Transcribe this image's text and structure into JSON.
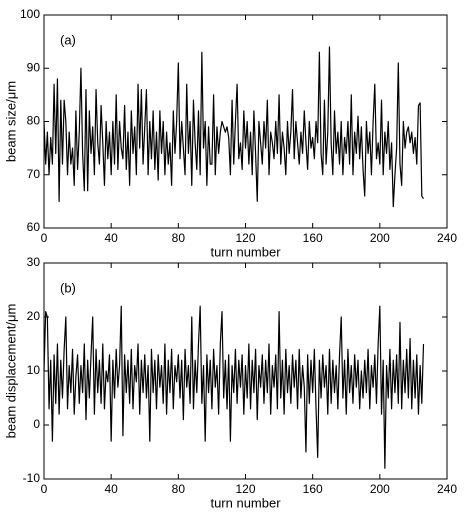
{
  "chart_data": [
    {
      "type": "line",
      "annotation": "(a)",
      "xlabel": "turn number",
      "ylabel": "beam size/μm",
      "color": "#000000",
      "xlim": [
        0,
        240
      ],
      "xticks": [
        0,
        40,
        80,
        120,
        160,
        200,
        240
      ],
      "ylim": [
        60,
        100
      ],
      "yticks": [
        60,
        70,
        80,
        90,
        100
      ],
      "x": [
        0,
        1,
        2,
        3,
        4,
        5,
        6,
        7,
        8,
        9,
        10,
        11,
        12,
        13,
        14,
        15,
        16,
        17,
        18,
        19,
        20,
        21,
        22,
        23,
        24,
        25,
        26,
        27,
        28,
        29,
        30,
        31,
        32,
        33,
        34,
        35,
        36,
        37,
        38,
        39,
        40,
        41,
        42,
        43,
        44,
        45,
        46,
        47,
        48,
        49,
        50,
        51,
        52,
        53,
        54,
        55,
        56,
        57,
        58,
        59,
        60,
        61,
        62,
        63,
        64,
        65,
        66,
        67,
        68,
        69,
        70,
        71,
        72,
        73,
        74,
        75,
        76,
        77,
        78,
        79,
        80,
        81,
        82,
        83,
        84,
        85,
        86,
        87,
        88,
        89,
        90,
        91,
        92,
        93,
        94,
        95,
        96,
        97,
        98,
        99,
        100,
        101,
        102,
        103,
        104,
        105,
        106,
        107,
        108,
        109,
        110,
        111,
        112,
        113,
        114,
        115,
        116,
        117,
        118,
        119,
        120,
        121,
        122,
        123,
        124,
        125,
        126,
        127,
        128,
        129,
        130,
        131,
        132,
        133,
        134,
        135,
        136,
        137,
        138,
        139,
        140,
        141,
        142,
        143,
        144,
        145,
        146,
        147,
        148,
        149,
        150,
        151,
        152,
        153,
        154,
        155,
        156,
        157,
        158,
        159,
        160,
        161,
        162,
        163,
        164,
        165,
        166,
        167,
        168,
        169,
        170,
        171,
        172,
        173,
        174,
        175,
        176,
        177,
        178,
        179,
        180,
        181,
        182,
        183,
        184,
        185,
        186,
        187,
        188,
        189,
        190,
        191,
        192,
        193,
        194,
        195,
        196,
        197,
        198,
        199,
        200,
        201,
        202,
        203,
        204,
        205,
        206,
        207,
        208,
        209,
        210,
        211,
        212,
        213,
        214,
        215,
        216,
        217,
        218,
        219,
        220,
        221,
        222,
        223,
        224,
        225,
        226
      ],
      "values": [
        80,
        72,
        78,
        70,
        77,
        72,
        87,
        74,
        88,
        65,
        84,
        72,
        84,
        80,
        70,
        78,
        72,
        75,
        68,
        82,
        71,
        78,
        90,
        74,
        67,
        86,
        67,
        82,
        74,
        79,
        70,
        86,
        76,
        72,
        83,
        76,
        68,
        80,
        73,
        78,
        70,
        80,
        72,
        85,
        71,
        80,
        75,
        73,
        83,
        71,
        78,
        68,
        82,
        74,
        79,
        70,
        87,
        75,
        86,
        72,
        79,
        86,
        70,
        80,
        73,
        82,
        71,
        78,
        69,
        82,
        74,
        80,
        70,
        78,
        72,
        76,
        68,
        82,
        74,
        80,
        91,
        73,
        80,
        75,
        70,
        87,
        74,
        80,
        68,
        84,
        76,
        71,
        82,
        70,
        93,
        75,
        80,
        68,
        79,
        72,
        72,
        85,
        70,
        79,
        74,
        78,
        80,
        79,
        78,
        79,
        77,
        70,
        84,
        72,
        80,
        87,
        73,
        76,
        71,
        82,
        75,
        80,
        72,
        78,
        70,
        82,
        74,
        65,
        80,
        76,
        72,
        80,
        75,
        84,
        70,
        78,
        76,
        73,
        80,
        74,
        85,
        72,
        78,
        75,
        70,
        80,
        74,
        78,
        86,
        73,
        80,
        76,
        72,
        78,
        74,
        82,
        76,
        71,
        80,
        75,
        77,
        73,
        80,
        76,
        93,
        74,
        70,
        84,
        72,
        78,
        94,
        76,
        70,
        82,
        74,
        78,
        72,
        80,
        70,
        77,
        74,
        80,
        72,
        85,
        70,
        78,
        74,
        81,
        73,
        79,
        71,
        66,
        80,
        74,
        78,
        70,
        80,
        87,
        73,
        76,
        72,
        84,
        70,
        78,
        74,
        80,
        71,
        76,
        64,
        70,
        75,
        91,
        72,
        68,
        80,
        75,
        78,
        79,
        76,
        78,
        74,
        77,
        72,
        83,
        83.5,
        66,
        65.5
      ]
    },
    {
      "type": "line",
      "annotation": "(b)",
      "xlabel": "turn number",
      "ylabel": "beam displacement/μm",
      "color": "#000000",
      "xlim": [
        0,
        240
      ],
      "xticks": [
        0,
        40,
        80,
        120,
        160,
        200,
        240
      ],
      "ylim": [
        -10,
        30
      ],
      "yticks": [
        -10,
        0,
        10,
        20,
        30
      ],
      "x": [
        0,
        1,
        2,
        3,
        4,
        5,
        6,
        7,
        8,
        9,
        10,
        11,
        12,
        13,
        14,
        15,
        16,
        17,
        18,
        19,
        20,
        21,
        22,
        23,
        24,
        25,
        26,
        27,
        28,
        29,
        30,
        31,
        32,
        33,
        34,
        35,
        36,
        37,
        38,
        39,
        40,
        41,
        42,
        43,
        44,
        45,
        46,
        47,
        48,
        49,
        50,
        51,
        52,
        53,
        54,
        55,
        56,
        57,
        58,
        59,
        60,
        61,
        62,
        63,
        64,
        65,
        66,
        67,
        68,
        69,
        70,
        71,
        72,
        73,
        74,
        75,
        76,
        77,
        78,
        79,
        80,
        81,
        82,
        83,
        84,
        85,
        86,
        87,
        88,
        89,
        90,
        91,
        92,
        93,
        94,
        95,
        96,
        97,
        98,
        99,
        100,
        101,
        102,
        103,
        104,
        105,
        106,
        107,
        108,
        109,
        110,
        111,
        112,
        113,
        114,
        115,
        116,
        117,
        118,
        119,
        120,
        121,
        122,
        123,
        124,
        125,
        126,
        127,
        128,
        129,
        130,
        131,
        132,
        133,
        134,
        135,
        136,
        137,
        138,
        139,
        140,
        141,
        142,
        143,
        144,
        145,
        146,
        147,
        148,
        149,
        150,
        151,
        152,
        153,
        154,
        155,
        156,
        157,
        158,
        159,
        160,
        161,
        162,
        163,
        164,
        165,
        166,
        167,
        168,
        169,
        170,
        171,
        172,
        173,
        174,
        175,
        176,
        177,
        178,
        179,
        180,
        181,
        182,
        183,
        184,
        185,
        186,
        187,
        188,
        189,
        190,
        191,
        192,
        193,
        194,
        195,
        196,
        197,
        198,
        199,
        200,
        201,
        202,
        203,
        204,
        205,
        206,
        207,
        208,
        209,
        210,
        211,
        212,
        213,
        214,
        215,
        216,
        217,
        218,
        219,
        220,
        221,
        222,
        223,
        224,
        225,
        226
      ],
      "values": [
        10,
        21,
        20,
        3,
        12,
        -3,
        13,
        4,
        15,
        2,
        12,
        5,
        14,
        20,
        3,
        11,
        6,
        14,
        2,
        9,
        13,
        4,
        11,
        6,
        15,
        1,
        12,
        5,
        13,
        20,
        2,
        14,
        6,
        12,
        4,
        15,
        3,
        10,
        8,
        13,
        -3,
        12,
        5,
        14,
        7,
        11,
        22,
        -2,
        13,
        6,
        12,
        4,
        14,
        3,
        11,
        8,
        15,
        2,
        12,
        6,
        13,
        5,
        11,
        -3,
        14,
        6,
        12,
        3,
        13,
        7,
        11,
        4,
        15,
        2,
        12,
        6,
        14,
        3,
        11,
        8,
        13,
        5,
        12,
        1,
        14,
        7,
        11,
        4,
        20,
        3,
        12,
        6,
        15,
        22,
        4,
        11,
        -3,
        13,
        6,
        12,
        3,
        14,
        7,
        11,
        2,
        15,
        21,
        5,
        12,
        3,
        13,
        -3,
        11,
        6,
        14,
        4,
        12,
        7,
        13,
        2,
        11,
        5,
        15,
        3,
        12,
        6,
        14,
        1,
        11,
        7,
        13,
        4,
        12,
        6,
        15,
        2,
        11,
        7,
        13,
        3,
        21,
        5,
        12,
        2,
        14,
        6,
        11,
        4,
        13,
        7,
        12,
        3,
        14,
        5,
        11,
        7,
        -5,
        13,
        4,
        12,
        6,
        14,
        3,
        -6,
        12,
        5,
        13,
        7,
        11,
        2,
        14,
        4,
        12,
        6,
        11,
        3,
        13,
        20,
        5,
        12,
        2,
        14,
        6,
        11,
        4,
        13,
        7,
        12,
        3,
        10,
        5,
        12,
        6,
        14,
        3,
        11,
        7,
        13,
        4,
        15,
        22,
        2,
        12,
        -8,
        11,
        5,
        14,
        3,
        12,
        6,
        13,
        4,
        19,
        3,
        12,
        6,
        14,
        5,
        16,
        3,
        12,
        5,
        13,
        2,
        11,
        4,
        15
      ]
    }
  ]
}
